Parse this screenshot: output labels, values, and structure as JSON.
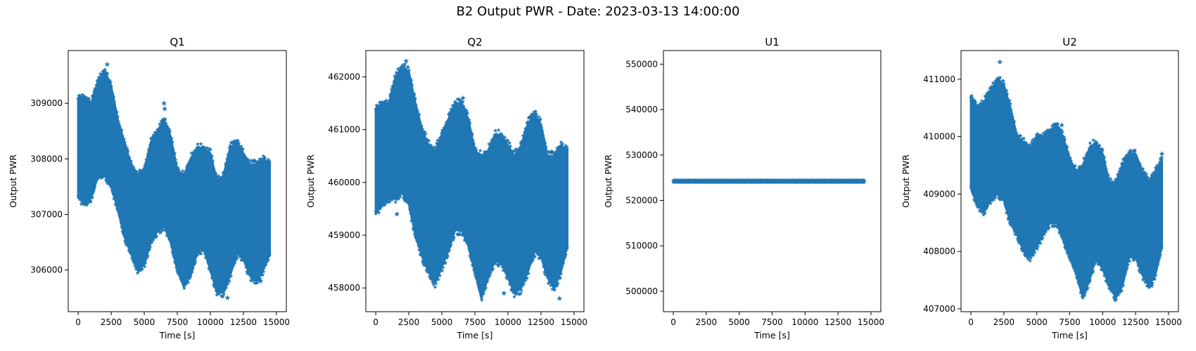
{
  "figure": {
    "suptitle": "B2 Output PWR - Date: 2023-03-13 14:00:00",
    "accent_color": "#1f77b4"
  },
  "chart_data": [
    {
      "type": "scatter",
      "title": "Q1",
      "xlabel": "Time [s]",
      "ylabel": "Output PWR",
      "marker": "star",
      "xlim": [
        -750,
        15750
      ],
      "ylim": [
        305250,
        309950
      ],
      "xticks": [
        0,
        2500,
        5000,
        7500,
        10000,
        12500,
        15000
      ],
      "yticks": [
        306000,
        307000,
        308000,
        309000
      ],
      "envelope": {
        "x": [
          0,
          500,
          1000,
          1500,
          2000,
          2500,
          3000,
          3500,
          4000,
          4500,
          5000,
          5500,
          6000,
          6500,
          7000,
          7500,
          8000,
          8500,
          9000,
          9500,
          10000,
          10500,
          11000,
          11500,
          12000,
          12500,
          13000,
          13500,
          14000,
          14500
        ],
        "upper": [
          309100,
          309100,
          309000,
          309400,
          309600,
          309300,
          308700,
          308300,
          307900,
          307700,
          307800,
          308300,
          308500,
          308700,
          308400,
          307800,
          307700,
          308000,
          308200,
          308200,
          308100,
          307600,
          307700,
          308200,
          308300,
          308100,
          307900,
          307900,
          308000,
          307900
        ],
        "lower": [
          307300,
          307200,
          307300,
          307700,
          307700,
          307500,
          307100,
          306600,
          306300,
          306000,
          306100,
          306500,
          306700,
          306800,
          306500,
          306000,
          305700,
          305900,
          306300,
          306400,
          306000,
          305600,
          305600,
          305900,
          306300,
          306200,
          305900,
          305800,
          306000,
          306300
        ]
      },
      "outliers": [
        {
          "x": 2200,
          "y": 309700
        },
        {
          "x": 6500,
          "y": 309000
        },
        {
          "x": 6550,
          "y": 308900
        },
        {
          "x": 11300,
          "y": 305500
        },
        {
          "x": 13800,
          "y": 305800
        }
      ]
    },
    {
      "type": "scatter",
      "title": "Q2",
      "xlabel": "Time [s]",
      "ylabel": "Output PWR",
      "marker": "star",
      "xlim": [
        -750,
        15750
      ],
      "ylim": [
        457550,
        462500
      ],
      "xticks": [
        0,
        2500,
        5000,
        7500,
        10000,
        12500,
        15000
      ],
      "yticks": [
        458000,
        459000,
        460000,
        461000,
        462000
      ],
      "envelope": {
        "x": [
          0,
          500,
          1000,
          1500,
          2000,
          2500,
          3000,
          3500,
          4000,
          4500,
          5000,
          5500,
          6000,
          6500,
          7000,
          7500,
          8000,
          8500,
          9000,
          9500,
          10000,
          10500,
          11000,
          11500,
          12000,
          12500,
          13000,
          13500,
          14000,
          14500
        ],
        "upper": [
          461400,
          461500,
          461500,
          462000,
          462200,
          462100,
          461500,
          461000,
          460700,
          460600,
          460900,
          461200,
          461500,
          461500,
          461200,
          460600,
          460500,
          460600,
          460900,
          460900,
          460700,
          460500,
          460700,
          461100,
          461300,
          461100,
          460500,
          460500,
          460700,
          460600
        ],
        "lower": [
          459400,
          459600,
          459700,
          459700,
          459800,
          459600,
          459000,
          458600,
          458300,
          458100,
          458400,
          458700,
          459100,
          459100,
          458800,
          458300,
          457800,
          458200,
          458500,
          458500,
          458200,
          457900,
          458000,
          458300,
          458700,
          458600,
          458200,
          458000,
          458300,
          458800
        ]
      },
      "outliers": [
        {
          "x": 1600,
          "y": 459400
        },
        {
          "x": 2300,
          "y": 462300
        },
        {
          "x": 6600,
          "y": 461600
        },
        {
          "x": 9700,
          "y": 457900
        },
        {
          "x": 13900,
          "y": 457800
        }
      ]
    },
    {
      "type": "scatter",
      "title": "U1",
      "xlabel": "Time [s]",
      "ylabel": "Output PWR",
      "marker": "star",
      "xlim": [
        -750,
        15750
      ],
      "ylim": [
        495500,
        553000
      ],
      "xticks": [
        0,
        2500,
        5000,
        7500,
        10000,
        12500,
        15000
      ],
      "yticks": [
        500000,
        510000,
        520000,
        530000,
        540000,
        550000
      ],
      "envelope": {
        "x": [
          0,
          14500
        ],
        "upper": [
          524400,
          524400
        ],
        "lower": [
          524050,
          524050
        ]
      },
      "outliers": []
    },
    {
      "type": "scatter",
      "title": "U2",
      "xlabel": "Time [s]",
      "ylabel": "Output PWR",
      "marker": "star",
      "xlim": [
        -750,
        15750
      ],
      "ylim": [
        406950,
        411500
      ],
      "xticks": [
        0,
        2500,
        5000,
        7500,
        10000,
        12500,
        15000
      ],
      "yticks": [
        407000,
        408000,
        409000,
        410000,
        411000
      ],
      "envelope": {
        "x": [
          0,
          500,
          1000,
          1500,
          2000,
          2500,
          3000,
          3500,
          4000,
          4500,
          5000,
          5500,
          6000,
          6500,
          7000,
          7500,
          8000,
          8500,
          9000,
          9500,
          10000,
          10500,
          11000,
          11500,
          12000,
          12500,
          13000,
          13500,
          14000,
          14500
        ],
        "upper": [
          410700,
          410500,
          410600,
          410800,
          411000,
          410900,
          410500,
          410000,
          409900,
          409800,
          410000,
          410000,
          410100,
          410200,
          410000,
          409600,
          409400,
          409500,
          409800,
          409900,
          409700,
          409200,
          409200,
          409500,
          409700,
          409700,
          409400,
          409200,
          409400,
          409600
        ],
        "lower": [
          409100,
          408800,
          408700,
          408900,
          409000,
          408900,
          408500,
          408300,
          408000,
          407900,
          408100,
          408300,
          408500,
          408500,
          408200,
          407900,
          407600,
          407200,
          407500,
          407900,
          407700,
          407400,
          407200,
          407400,
          407900,
          407900,
          407600,
          407400,
          407600,
          408100
        ]
      },
      "outliers": [
        {
          "x": 2200,
          "y": 411300
        },
        {
          "x": 6900,
          "y": 410200
        },
        {
          "x": 13700,
          "y": 407400
        },
        {
          "x": 14500,
          "y": 409700
        }
      ]
    }
  ]
}
